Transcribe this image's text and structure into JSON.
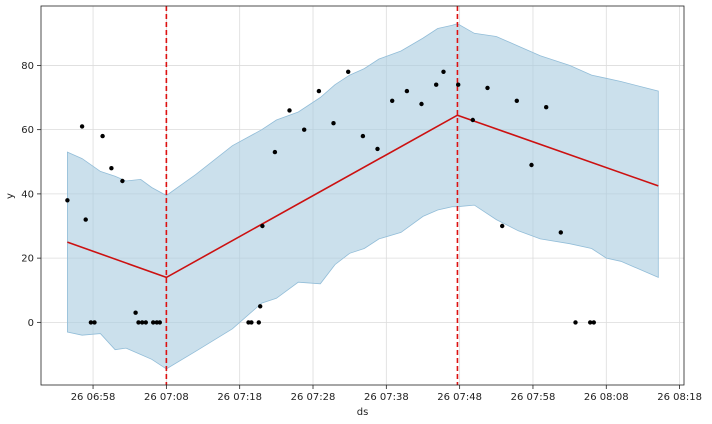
{
  "chart_data": {
    "type": "line",
    "title": "",
    "xlabel": "ds",
    "ylabel": "y",
    "x_unit": "minutes after 06:50 (day 26)",
    "xlim": [
      0.9,
      88.6
    ],
    "ylim": [
      -19.5,
      98.5
    ],
    "grid": true,
    "colors": {
      "band": "#a8cce0",
      "band_edge": "#92bdd8",
      "trend": "#cc1111",
      "changepoint": "#dd1111",
      "points": "#000000",
      "grid": "#dcdcdc",
      "axis": "#222222"
    },
    "x_ticks": [
      {
        "x": 8,
        "label": "26 06:58"
      },
      {
        "x": 18,
        "label": "26 07:08"
      },
      {
        "x": 28,
        "label": "26 07:18"
      },
      {
        "x": 38,
        "label": "26 07:28"
      },
      {
        "x": 48,
        "label": "26 07:38"
      },
      {
        "x": 58,
        "label": "26 07:48"
      },
      {
        "x": 68,
        "label": "26 07:58"
      },
      {
        "x": 78,
        "label": "26 08:08"
      },
      {
        "x": 88,
        "label": "26 08:18"
      }
    ],
    "y_ticks": [
      {
        "y": 0,
        "label": "0"
      },
      {
        "y": 20,
        "label": "20"
      },
      {
        "y": 40,
        "label": "40"
      },
      {
        "y": 60,
        "label": "60"
      },
      {
        "y": 80,
        "label": "80"
      }
    ],
    "changepoints": [
      18.0,
      57.7
    ],
    "trend": {
      "x": [
        4.5,
        18.0,
        57.7,
        85.1
      ],
      "y": [
        25.0,
        14.0,
        64.5,
        42.5
      ]
    },
    "uncertainty_band": {
      "x": [
        4.5,
        6.5,
        9.0,
        11.0,
        12.5,
        14.5,
        16.0,
        18.0,
        22.0,
        27.0,
        31.0,
        33.0,
        36.0,
        39.0,
        41.0,
        43.0,
        45.0,
        47.0,
        50.0,
        53.0,
        55.0,
        57.0,
        57.7,
        60.0,
        63.0,
        66.0,
        69.0,
        73.0,
        76.0,
        78.0,
        80.0,
        85.1
      ],
      "upper": [
        53.0,
        51.0,
        47.0,
        45.5,
        44.0,
        44.5,
        42.0,
        39.5,
        46.0,
        55.0,
        60.0,
        63.0,
        65.5,
        70.0,
        74.0,
        77.0,
        79.0,
        82.0,
        84.5,
        88.5,
        91.5,
        92.5,
        93.0,
        90.0,
        89.0,
        86.0,
        83.0,
        80.0,
        77.0,
        76.0,
        75.0,
        72.0
      ],
      "lower": [
        -3.0,
        -4.0,
        -3.5,
        -8.5,
        -8.0,
        -10.0,
        -11.5,
        -14.5,
        -9.0,
        -2.0,
        6.0,
        7.5,
        12.5,
        12.0,
        18.0,
        21.5,
        23.0,
        26.0,
        28.0,
        33.0,
        35.0,
        36.0,
        36.0,
        36.5,
        32.0,
        28.5,
        26.0,
        24.5,
        23.0,
        20.0,
        19.0,
        14.0
      ]
    },
    "observed": {
      "x": [
        4.5,
        6.5,
        7.0,
        7.7,
        8.2,
        9.3,
        10.5,
        12.0,
        13.8,
        14.2,
        14.7,
        15.2,
        16.2,
        16.7,
        17.1,
        29.2,
        29.6,
        30.6,
        30.8,
        31.1,
        32.8,
        34.8,
        36.8,
        38.8,
        40.8,
        42.8,
        44.8,
        46.8,
        48.8,
        50.8,
        52.8,
        54.8,
        55.8,
        57.8,
        59.8,
        61.8,
        63.8,
        65.8,
        67.8,
        69.8,
        71.8,
        73.8,
        75.8,
        76.3
      ],
      "y": [
        38,
        61,
        32,
        0,
        0,
        58,
        48,
        44,
        3,
        0,
        0,
        0,
        0,
        0,
        0,
        0,
        0,
        0,
        5,
        30,
        53,
        66,
        60,
        72,
        62,
        78,
        58,
        54,
        69,
        72,
        68,
        74,
        78,
        74,
        63,
        73,
        30,
        69,
        49,
        67,
        28,
        0,
        0,
        0
      ]
    }
  }
}
